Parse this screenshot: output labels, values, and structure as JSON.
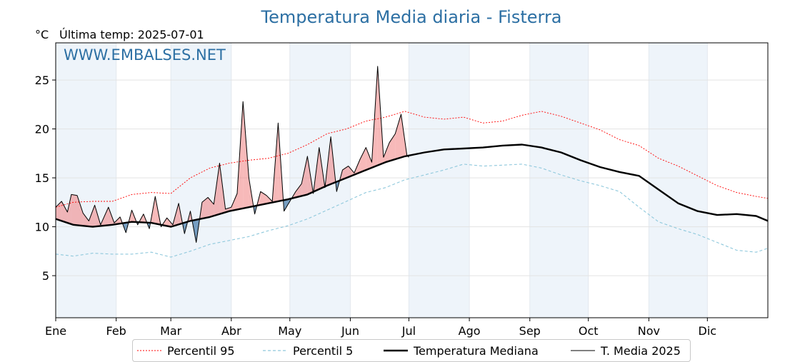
{
  "header": {
    "title": "Temperatura Media diaria - Fisterra",
    "unit": "°C",
    "last_temp": "Última temp: 2025-07-01",
    "watermark": "WWW.EMBALSES.NET"
  },
  "chart_data": {
    "type": "line",
    "title": "Temperatura Media diaria - Fisterra",
    "ylabel": "°C",
    "xlim_day": [
      1,
      366
    ],
    "ylim": [
      0.7,
      28.8
    ],
    "yticks": [
      5,
      10,
      15,
      20,
      25
    ],
    "ytick_labels": [
      "5",
      "10",
      "15",
      "20",
      "25"
    ],
    "months": [
      "Ene",
      "Feb",
      "Mar",
      "Abr",
      "May",
      "Jun",
      "Jul",
      "Ago",
      "Sep",
      "Oct",
      "Nov",
      "Dic"
    ],
    "month_start_days": [
      1,
      32,
      60,
      91,
      121,
      152,
      182,
      213,
      244,
      274,
      305,
      335
    ],
    "grid": true,
    "legend_position": "bottom",
    "colors": {
      "p95": "#ff0000",
      "p5": "#8ec8dc",
      "median": "#000000",
      "mean2025": "#000000",
      "above_fill": "#f08080",
      "below_fill": "#4a7fae",
      "band_shade": "#eef4fa",
      "title": "#2c6fa3"
    },
    "legend": [
      {
        "key": "p95",
        "label": "Percentil 95"
      },
      {
        "key": "p5",
        "label": "Percentil 5"
      },
      {
        "key": "median",
        "label": "Temperatura Mediana"
      },
      {
        "key": "mean2025",
        "label": "T. Media 2025"
      }
    ],
    "series": [
      {
        "key": "p95",
        "name": "Percentil 95",
        "x": [
          1,
          10,
          20,
          30,
          40,
          50,
          60,
          70,
          80,
          90,
          100,
          110,
          120,
          130,
          140,
          150,
          160,
          170,
          180,
          190,
          200,
          210,
          220,
          230,
          240,
          250,
          260,
          270,
          280,
          290,
          300,
          310,
          320,
          330,
          340,
          350,
          360,
          366
        ],
        "y": [
          12.0,
          12.5,
          12.6,
          12.6,
          13.3,
          13.5,
          13.4,
          15.0,
          16.0,
          16.5,
          16.8,
          17.0,
          17.5,
          18.4,
          19.5,
          20.0,
          20.8,
          21.2,
          21.8,
          21.2,
          21.0,
          21.2,
          20.6,
          20.8,
          21.4,
          21.8,
          21.3,
          20.6,
          19.9,
          18.9,
          18.3,
          17.0,
          16.2,
          15.2,
          14.2,
          13.5,
          13.1,
          12.9
        ]
      },
      {
        "key": "p5",
        "name": "Percentil 5",
        "x": [
          1,
          10,
          20,
          30,
          40,
          50,
          60,
          70,
          80,
          90,
          100,
          110,
          120,
          130,
          140,
          150,
          160,
          170,
          180,
          190,
          200,
          210,
          220,
          230,
          240,
          250,
          260,
          270,
          280,
          290,
          300,
          310,
          320,
          330,
          340,
          350,
          360,
          366
        ],
        "y": [
          7.2,
          7.0,
          7.3,
          7.2,
          7.2,
          7.4,
          6.9,
          7.5,
          8.2,
          8.6,
          9.0,
          9.6,
          10.1,
          10.8,
          11.7,
          12.6,
          13.5,
          14.0,
          14.8,
          15.3,
          15.8,
          16.4,
          16.2,
          16.3,
          16.4,
          16.0,
          15.3,
          14.7,
          14.2,
          13.6,
          12.0,
          10.5,
          9.8,
          9.2,
          8.4,
          7.6,
          7.4,
          7.8
        ]
      },
      {
        "key": "median",
        "name": "Temperatura Mediana",
        "x": [
          1,
          10,
          20,
          30,
          40,
          50,
          60,
          70,
          80,
          90,
          100,
          110,
          120,
          130,
          140,
          150,
          160,
          170,
          180,
          190,
          200,
          210,
          220,
          230,
          240,
          250,
          260,
          270,
          280,
          290,
          300,
          310,
          320,
          330,
          340,
          350,
          360,
          366
        ],
        "y": [
          10.8,
          10.2,
          10.0,
          10.2,
          10.5,
          10.4,
          10.0,
          10.6,
          11.0,
          11.6,
          12.0,
          12.4,
          12.8,
          13.3,
          14.2,
          15.0,
          15.8,
          16.6,
          17.2,
          17.6,
          17.9,
          18.0,
          18.1,
          18.3,
          18.4,
          18.1,
          17.6,
          16.8,
          16.1,
          15.6,
          15.2,
          13.8,
          12.4,
          11.6,
          11.2,
          11.3,
          11.1,
          10.6
        ]
      },
      {
        "key": "mean2025",
        "name": "T. Media 2025",
        "x": [
          1,
          4,
          7,
          9,
          12,
          15,
          18,
          21,
          24,
          28,
          31,
          34,
          37,
          40,
          43,
          46,
          49,
          52,
          55,
          58,
          61,
          64,
          67,
          70,
          73,
          76,
          79,
          82,
          85,
          88,
          91,
          94,
          97,
          100,
          103,
          106,
          109,
          112,
          115,
          118,
          121,
          124,
          127,
          130,
          133,
          136,
          139,
          142,
          145,
          148,
          151,
          154,
          157,
          160,
          163,
          166,
          169,
          172,
          175,
          178,
          181,
          182
        ],
        "y": [
          12.0,
          12.6,
          11.5,
          13.3,
          13.2,
          11.4,
          10.6,
          12.2,
          10.2,
          12.0,
          10.4,
          11.0,
          9.4,
          11.7,
          10.2,
          11.3,
          9.8,
          13.1,
          10.0,
          10.9,
          10.2,
          12.4,
          9.3,
          11.6,
          8.4,
          12.5,
          13.0,
          12.3,
          16.5,
          11.8,
          12.0,
          13.4,
          22.8,
          15.0,
          11.3,
          13.6,
          13.2,
          12.6,
          20.6,
          11.6,
          12.6,
          13.6,
          14.4,
          17.2,
          13.4,
          18.1,
          14.0,
          19.2,
          13.6,
          15.8,
          16.2,
          15.5,
          16.9,
          18.1,
          16.6,
          26.4,
          17.1,
          18.6,
          19.5,
          21.5,
          17.3,
          17.1
        ]
      }
    ]
  }
}
